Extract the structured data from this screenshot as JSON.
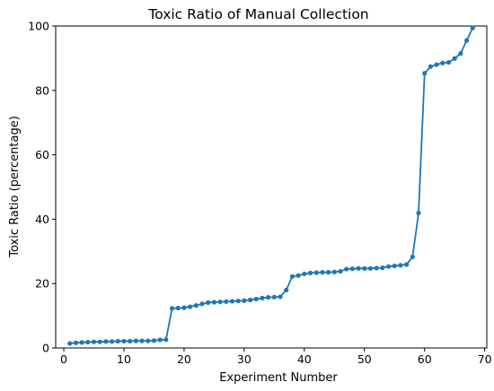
{
  "chart_data": {
    "type": "line",
    "title": "Toxic Ratio of Manual Collection",
    "xlabel": "Experiment Number",
    "ylabel": "Toxic Ratio (percentage)",
    "xlim": [
      -1.35,
      70.35
    ],
    "ylim": [
      0,
      100
    ],
    "xticks": [
      0,
      10,
      20,
      30,
      40,
      50,
      60,
      70
    ],
    "yticks": [
      0,
      20,
      40,
      60,
      80,
      100
    ],
    "xtick_labels": [
      "0",
      "10",
      "20",
      "30",
      "40",
      "50",
      "60",
      "70"
    ],
    "ytick_labels": [
      "0",
      "20",
      "40",
      "60",
      "80",
      "100"
    ],
    "grid": false,
    "legend": "none",
    "colors": {
      "series": "#1f77b4",
      "axes": "#000000",
      "background": "#ffffff"
    },
    "series": [
      {
        "marker": "circle",
        "x": [
          1,
          2,
          3,
          4,
          5,
          6,
          7,
          8,
          9,
          10,
          11,
          12,
          13,
          14,
          15,
          16,
          17,
          18,
          19,
          20,
          21,
          22,
          23,
          24,
          25,
          26,
          27,
          28,
          29,
          30,
          31,
          32,
          33,
          34,
          35,
          36,
          37,
          38,
          39,
          40,
          41,
          42,
          43,
          44,
          45,
          46,
          47,
          48,
          49,
          50,
          51,
          52,
          53,
          54,
          55,
          56,
          57,
          58,
          59,
          60,
          61,
          62,
          63,
          64,
          65,
          66,
          67,
          68
        ],
        "y": [
          1.4,
          1.6,
          1.7,
          1.8,
          1.9,
          1.9,
          2.0,
          2.0,
          2.1,
          2.1,
          2.1,
          2.2,
          2.2,
          2.2,
          2.3,
          2.5,
          2.6,
          12.3,
          12.4,
          12.5,
          12.8,
          13.2,
          13.7,
          14.1,
          14.2,
          14.3,
          14.4,
          14.5,
          14.6,
          14.7,
          14.9,
          15.2,
          15.5,
          15.7,
          15.8,
          15.9,
          18.0,
          22.2,
          22.5,
          23.0,
          23.3,
          23.4,
          23.5,
          23.5,
          23.6,
          23.8,
          24.5,
          24.6,
          24.7,
          24.7,
          24.7,
          24.8,
          24.9,
          25.3,
          25.5,
          25.7,
          25.9,
          28.3,
          41.9,
          85.3,
          87.4,
          88.0,
          88.5,
          88.7,
          89.9,
          91.5,
          95.5,
          99.4
        ]
      }
    ]
  }
}
